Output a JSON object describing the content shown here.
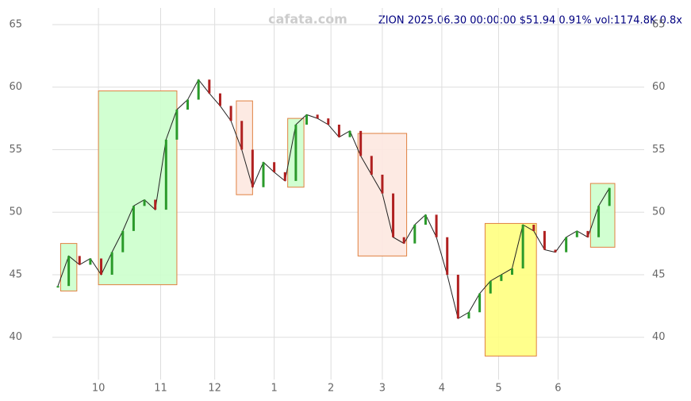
{
  "chart_data": {
    "type": "line",
    "title": "ZION 2025.06.30 00:00:00 $51.94 0.91% vol:1174.8K 0.8x",
    "watermark": "cafata.com",
    "x": [
      0,
      4,
      8,
      12,
      16,
      20,
      24,
      28,
      32,
      36,
      40,
      44,
      48,
      52,
      56,
      60,
      64,
      68,
      72,
      76,
      80,
      84,
      88,
      92,
      96,
      100,
      104,
      108,
      112,
      116,
      120,
      124,
      128,
      132,
      136,
      140,
      144,
      148,
      152,
      156,
      160,
      164,
      168,
      172,
      176,
      180,
      184,
      188,
      192,
      196,
      200,
      204
    ],
    "series": [
      {
        "name": "ZION",
        "color": "#222222",
        "values": [
          44.1,
          46.5,
          45.8,
          46.3,
          45.0,
          46.8,
          48.5,
          50.5,
          51.0,
          50.2,
          55.8,
          58.2,
          59.0,
          60.6,
          59.5,
          58.5,
          57.3,
          55.0,
          52.0,
          54.0,
          53.2,
          52.5,
          57.0,
          57.8,
          57.5,
          57.0,
          56.0,
          56.5,
          54.5,
          53.0,
          51.5,
          48.0,
          47.5,
          49.0,
          49.8,
          48.0,
          45.0,
          41.5,
          42.0,
          43.5,
          44.5,
          45.0,
          45.5,
          49.0,
          48.5,
          47.0,
          46.8,
          48.0,
          48.5,
          48.0,
          50.5,
          51.94
        ]
      }
    ],
    "zones": [
      {
        "x0": 1,
        "x1": 7,
        "low": 43.7,
        "high": 47.5,
        "color": "#ccffcc"
      },
      {
        "x0": 15,
        "x1": 44,
        "low": 44.2,
        "high": 59.7,
        "color": "#ccffcc"
      },
      {
        "x0": 66,
        "x1": 72,
        "low": 51.4,
        "high": 58.9,
        "color": "#fde8e0"
      },
      {
        "x0": 85,
        "x1": 91,
        "low": 52.0,
        "high": 57.5,
        "color": "#ccffcc"
      },
      {
        "x0": 111,
        "x1": 129,
        "low": 46.5,
        "high": 56.3,
        "color": "#fde8e0"
      },
      {
        "x0": 158,
        "x1": 177,
        "low": 38.5,
        "high": 49.1,
        "color": "#ffff80"
      },
      {
        "x0": 197,
        "x1": 206,
        "low": 47.2,
        "high": 52.3,
        "color": "#ccffcc"
      }
    ],
    "xlim": [
      0,
      206
    ],
    "ylim": [
      37.0,
      66.3
    ],
    "xticks": [
      {
        "value": 15,
        "label": "10"
      },
      {
        "value": 38,
        "label": "11"
      },
      {
        "value": 58,
        "label": "12"
      },
      {
        "value": 80,
        "label": "1"
      },
      {
        "value": 101,
        "label": "2"
      },
      {
        "value": 120,
        "label": "3"
      },
      {
        "value": 142,
        "label": "4"
      },
      {
        "value": 163,
        "label": "5"
      },
      {
        "value": 185,
        "label": "6"
      }
    ],
    "yticks": [
      40,
      45,
      50,
      55,
      60,
      65
    ],
    "grid": true
  }
}
